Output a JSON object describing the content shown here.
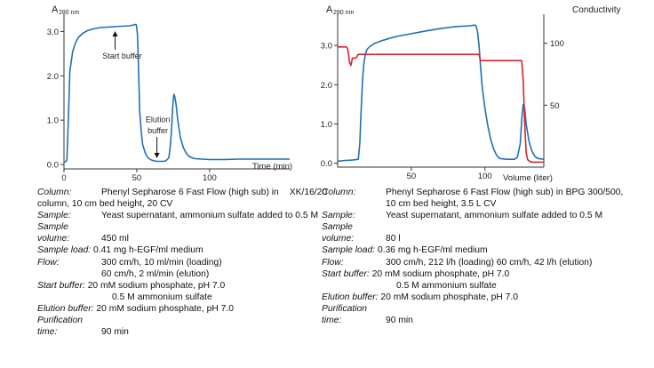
{
  "chart_data": [
    {
      "type": "line",
      "ylabel": "A280 nm",
      "ylabel_main": "A",
      "ylabel_sub": "280 nm",
      "xlabel": "Time (min)",
      "xlim": [
        0,
        155
      ],
      "ylim": [
        -0.1,
        3.35
      ],
      "x_ticks": [
        0,
        50,
        100
      ],
      "x_tick_labels": [
        "0",
        "50",
        "100"
      ],
      "y_ticks": [
        0.0,
        1.0,
        2.0,
        3.0
      ],
      "y_tick_labels": [
        "0.0",
        "1.0",
        "2.0",
        "3.0"
      ],
      "grid": false,
      "series": [
        {
          "color": "#1f6fb8",
          "x": [
            0,
            1,
            2,
            3,
            4,
            6,
            8,
            10,
            13,
            16,
            20,
            25,
            30,
            35,
            40,
            45,
            48,
            49,
            49.5,
            50,
            50.5,
            51,
            51.5,
            52,
            53,
            54,
            56,
            58,
            60,
            62,
            64,
            66,
            68,
            70,
            72,
            73,
            74,
            74.5,
            75,
            75.5,
            76,
            77,
            78,
            79,
            80,
            82,
            84,
            86,
            88,
            90,
            95,
            100,
            110,
            120,
            130,
            140,
            150,
            155
          ],
          "y": [
            0.05,
            0.06,
            0.1,
            1.0,
            2.1,
            2.55,
            2.75,
            2.87,
            2.96,
            3.02,
            3.06,
            3.09,
            3.1,
            3.11,
            3.12,
            3.13,
            3.15,
            3.16,
            3.16,
            3.1,
            2.9,
            2.4,
            1.8,
            1.2,
            0.75,
            0.45,
            0.24,
            0.14,
            0.1,
            0.08,
            0.07,
            0.07,
            0.07,
            0.08,
            0.15,
            0.4,
            0.85,
            1.2,
            1.45,
            1.58,
            1.55,
            1.35,
            1.05,
            0.8,
            0.6,
            0.38,
            0.25,
            0.18,
            0.15,
            0.13,
            0.12,
            0.11,
            0.11,
            0.12,
            0.12,
            0.12,
            0.12,
            0.12
          ]
        }
      ],
      "annotations": [
        {
          "text": "Start buffer",
          "x": 40,
          "y": 2.95
        },
        {
          "text": "Elution",
          "x": 62,
          "y": 0.95
        },
        {
          "text": "buffer",
          "x": 62,
          "y": 0.7
        }
      ]
    },
    {
      "type": "line",
      "ylabel": "A280 nm",
      "ylabel_main": "A",
      "ylabel_sub": "280 nm",
      "y2label": "Conductivity",
      "xlabel": "Volume (liter)",
      "xlim": [
        0,
        140
      ],
      "ylim": [
        -0.1,
        3.75
      ],
      "y2lim": [
        0,
        122
      ],
      "x_ticks": [
        50,
        100
      ],
      "x_tick_labels": [
        "50",
        "100"
      ],
      "y_ticks": [
        0.0,
        1.0,
        2.0,
        3.0
      ],
      "y_tick_labels": [
        "0.0",
        "1.0",
        "2.0",
        "3.0"
      ],
      "y2_ticks": [
        50,
        100
      ],
      "y2_tick_labels": [
        "50",
        "100"
      ],
      "grid": false,
      "series": [
        {
          "color": "#1f6fb8",
          "x": [
            0,
            5,
            10,
            14,
            15,
            16,
            17,
            18,
            19,
            20,
            22,
            25,
            30,
            35,
            40,
            50,
            60,
            70,
            80,
            90,
            93,
            94,
            95,
            96,
            97,
            98,
            100,
            102,
            104,
            106,
            108,
            110,
            115,
            120,
            122,
            124,
            125,
            126,
            127,
            128,
            130,
            132,
            134,
            136,
            140
          ],
          "y": [
            0.05,
            0.07,
            0.08,
            0.1,
            0.5,
            1.4,
            2.2,
            2.6,
            2.8,
            2.9,
            2.98,
            3.05,
            3.12,
            3.18,
            3.23,
            3.3,
            3.37,
            3.43,
            3.48,
            3.5,
            3.52,
            3.5,
            3.35,
            3.0,
            2.5,
            2.0,
            1.4,
            0.95,
            0.6,
            0.35,
            0.2,
            0.12,
            0.1,
            0.1,
            0.15,
            0.5,
            1.1,
            1.5,
            1.4,
            1.0,
            0.55,
            0.3,
            0.17,
            0.12,
            0.1
          ]
        },
        {
          "color": "#d9242c",
          "axis": "right",
          "x": [
            0,
            6,
            6.5,
            7,
            8,
            9,
            10,
            12,
            13,
            14,
            15,
            20,
            40,
            60,
            90,
            96,
            97,
            100,
            110,
            120,
            125,
            126,
            127,
            128,
            129,
            130,
            132,
            134,
            136,
            140
          ],
          "y": [
            97,
            97,
            96,
            94,
            85,
            82,
            88,
            88,
            89,
            91,
            91,
            91,
            91,
            91,
            91,
            91,
            86,
            86,
            86,
            86,
            86,
            70,
            35,
            12,
            6,
            5,
            4,
            4,
            4,
            4
          ]
        }
      ]
    }
  ],
  "left_notes": {
    "column_label": "Column:",
    "column_value": "Phenyl Sepharose 6 Fast Flow (high sub) in",
    "column_value_tail": "XK/16/20",
    "column_cont": "column, 10 cm bed height, 20 CV",
    "sample_label": "Sample:",
    "sample_value": "Yeast supernatant, ammonium sulfate added to 0.5 M",
    "sample_vol_label_1": "Sample",
    "sample_vol_label_2": "volume:",
    "sample_vol_value": "450 ml",
    "sample_load_label": "Sample load:",
    "sample_load_value": "0.41 mg h-EGF/ml medium",
    "flow_label": "Flow:",
    "flow_value_1": "300 cm/h, 10 ml/min (loading)",
    "flow_value_2": "60 cm/h, 2 ml/min (elution)",
    "start_buffer_label": "Start buffer:",
    "start_buffer_value_1": "20 mM sodium phosphate, pH 7.0",
    "start_buffer_value_2": "0.5 M ammonium sulfate",
    "elution_buffer_label": "Elution buffer:",
    "elution_buffer_value": "20 mM sodium phosphate, pH 7.0",
    "purif_label_1": "Purification",
    "purif_label_2": "time:",
    "purif_value": "90 min"
  },
  "right_notes": {
    "column_label": "Column:",
    "column_value": "Phenyl Sepharose 6 Fast Flow (high sub) in BPG 300/500,",
    "column_cont": "10 cm bed height, 3.5 L CV",
    "sample_label": "Sample:",
    "sample_value": "Yeast supernatant, ammonium sulfate added to 0.5 M",
    "sample_vol_label_1": "Sample",
    "sample_vol_label_2": "volume:",
    "sample_vol_value": "80 l",
    "sample_load_label": "Sample load:",
    "sample_load_value": "0.36 mg h-EGF/ml medium",
    "flow_label": "Flow:",
    "flow_value_1": "300 cm/h, 212 l/h (loading) 60 cm/h, 42 l/h (elution)",
    "start_buffer_label": "Start buffer:",
    "start_buffer_value_1": "20 mM sodium phosphate, pH 7.0",
    "start_buffer_value_2": "0.5 M ammonium sulfate",
    "elution_buffer_label": "Elution buffer:",
    "elution_buffer_value": "20 mM sodium phosphate, pH 7.0",
    "purif_label_1": "Purification",
    "purif_label_2": "time:",
    "purif_value": "90 min"
  }
}
